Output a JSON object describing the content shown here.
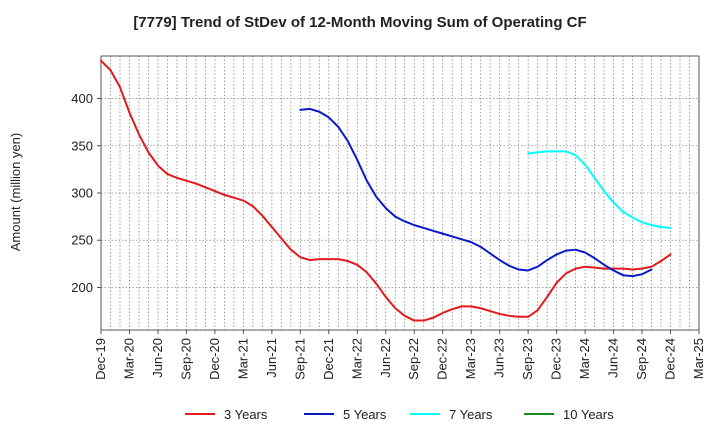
{
  "chart_data": {
    "type": "line",
    "title": "[7779]  Trend of StDev of 12-Month Moving Sum of Operating CF",
    "xlabel": "",
    "ylabel": "Amount (million yen)",
    "ylim": [
      155,
      445
    ],
    "yticks": [
      200,
      250,
      300,
      350,
      400
    ],
    "x_tick_labels": [
      "Dec-19",
      "Mar-20",
      "Jun-20",
      "Sep-20",
      "Dec-20",
      "Mar-21",
      "Jun-21",
      "Sep-21",
      "Dec-21",
      "Mar-22",
      "Jun-22",
      "Sep-22",
      "Dec-22",
      "Mar-23",
      "Jun-23",
      "Sep-23",
      "Dec-23",
      "Mar-24",
      "Jun-24",
      "Sep-24",
      "Dec-24",
      "Mar-25"
    ],
    "grid": true,
    "legend_position": "bottom",
    "series": [
      {
        "name": "3 Years",
        "color": "#e31a1c",
        "start_month_index": 0,
        "values": [
          440,
          430,
          412,
          385,
          362,
          343,
          329,
          320,
          316,
          313,
          310,
          306,
          302,
          298,
          295,
          292,
          286,
          276,
          264,
          252,
          240,
          232,
          229,
          230,
          230,
          230,
          228,
          224,
          216,
          204,
          190,
          178,
          170,
          165,
          165,
          168,
          173,
          177,
          180,
          180,
          178,
          175,
          172,
          170,
          169,
          169,
          176,
          190,
          205,
          215,
          220,
          222,
          221,
          220,
          220,
          220,
          219,
          220,
          222,
          228,
          235
        ]
      },
      {
        "name": "5 Years",
        "color": "#0a1ac8",
        "start_month_index": 21,
        "values": [
          388,
          389,
          386,
          380,
          370,
          355,
          335,
          313,
          296,
          284,
          275,
          270,
          266,
          263,
          260,
          257,
          254,
          251,
          248,
          243,
          236,
          229,
          223,
          219,
          218,
          222,
          229,
          235,
          239,
          240,
          237,
          231,
          224,
          218,
          213,
          212,
          214,
          219
        ]
      },
      {
        "name": "7 Years",
        "color": "#00ffff",
        "start_month_index": 45,
        "values": [
          342,
          343,
          344,
          344,
          344,
          340,
          330,
          316,
          302,
          290,
          280,
          274,
          269,
          266,
          264,
          263
        ]
      },
      {
        "name": "10 Years",
        "color": "#1a8a1a",
        "start_month_index": 0,
        "values": []
      }
    ]
  }
}
